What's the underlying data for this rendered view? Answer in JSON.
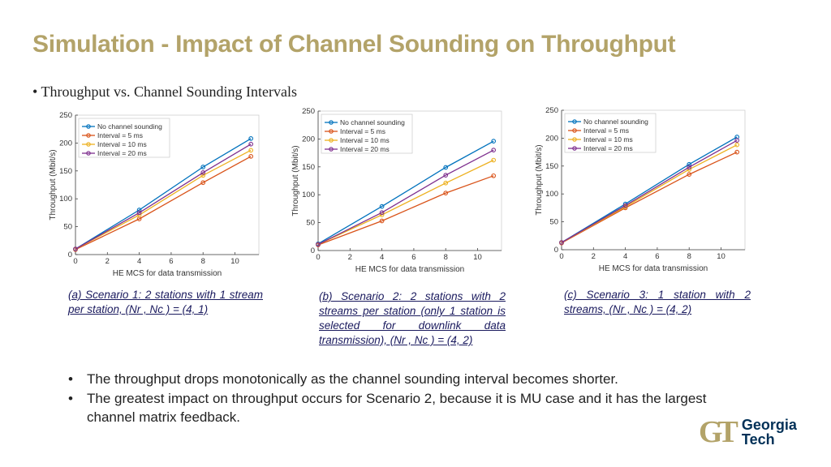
{
  "title": "Simulation - Impact of Channel Sounding on Throughput",
  "subtitle": "Throughput vs. Channel Sounding Intervals",
  "legend_labels": [
    "No channel sounding",
    "Interval = 5 ms",
    "Interval = 10 ms",
    "Interval = 20 ms"
  ],
  "colors": [
    "#0072bd",
    "#d95319",
    "#edb120",
    "#7e2f8e"
  ],
  "chart_data": [
    {
      "type": "line",
      "xlabel": "HE MCS for data transmission",
      "ylabel": "Throughput (Mbit/s)",
      "xlim": [
        0,
        11.5
      ],
      "ylim": [
        0,
        250
      ],
      "xticks": [
        0,
        2,
        4,
        6,
        8,
        10
      ],
      "yticks": [
        0,
        50,
        100,
        150,
        200,
        250
      ],
      "x": [
        0,
        4,
        8,
        11
      ],
      "series": [
        {
          "name": "No channel sounding",
          "values": [
            10,
            80,
            157,
            208
          ]
        },
        {
          "name": "Interval = 5 ms",
          "values": [
            9,
            64,
            129,
            176
          ]
        },
        {
          "name": "Interval = 10 ms",
          "values": [
            10,
            71,
            142,
            187
          ]
        },
        {
          "name": "Interval = 20 ms",
          "values": [
            10,
            75,
            147,
            198
          ]
        }
      ],
      "caption": "(a) Scenario 1: 2 stations with 1 stream per station, (Nr , Nc ) = (4, 1)"
    },
    {
      "type": "line",
      "xlabel": "HE MCS for data transmission",
      "ylabel": "Throughput (Mbit/s)",
      "xlim": [
        0,
        11.5
      ],
      "ylim": [
        0,
        250
      ],
      "xticks": [
        0,
        2,
        4,
        6,
        8,
        10
      ],
      "yticks": [
        0,
        50,
        100,
        150,
        200,
        250
      ],
      "x": [
        0,
        4,
        8,
        11
      ],
      "series": [
        {
          "name": "No channel sounding",
          "values": [
            12,
            79,
            149,
            196
          ]
        },
        {
          "name": "Interval = 5 ms",
          "values": [
            10,
            53,
            103,
            134
          ]
        },
        {
          "name": "Interval = 10 ms",
          "values": [
            11,
            64,
            121,
            162
          ]
        },
        {
          "name": "Interval = 20 ms",
          "values": [
            11,
            68,
            135,
            180
          ]
        }
      ],
      "caption": "(b) Scenario 2: 2 stations with 2 streams per station (only 1 station is selected for downlink data transmission), (Nr , Nc ) = (4, 2)"
    },
    {
      "type": "line",
      "xlabel": "HE MCS for data transmission",
      "ylabel": "Throughput (Mbit/s)",
      "xlim": [
        0,
        11.5
      ],
      "ylim": [
        0,
        250
      ],
      "xticks": [
        0,
        2,
        4,
        6,
        8,
        10
      ],
      "yticks": [
        0,
        50,
        100,
        150,
        200,
        250
      ],
      "x": [
        0,
        4,
        8,
        11
      ],
      "series": [
        {
          "name": "No channel sounding",
          "values": [
            13,
            82,
            153,
            202
          ]
        },
        {
          "name": "Interval = 5 ms",
          "values": [
            12,
            75,
            135,
            175
          ]
        },
        {
          "name": "Interval = 10 ms",
          "values": [
            13,
            77,
            144,
            188
          ]
        },
        {
          "name": "Interval = 20 ms",
          "values": [
            13,
            79,
            148,
            196
          ]
        }
      ],
      "caption": "(c) Scenario 3: 1 station with 2 streams, (Nr , Nc ) = (4, 2)"
    }
  ],
  "bullets": [
    "The throughput drops monotonically as the channel sounding interval becomes shorter.",
    "The greatest impact on throughput occurs for Scenario 2, because it is MU case and it has the largest channel matrix feedback."
  ],
  "logo": {
    "mark": "GT",
    "line1": "Georgia",
    "line2": "Tech"
  }
}
